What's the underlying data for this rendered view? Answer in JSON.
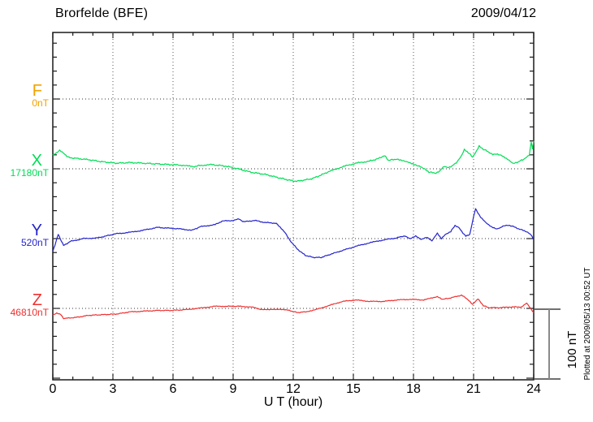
{
  "chart_data": {
    "type": "line",
    "title": "Brorfelde (BFE)",
    "date": "2009/04/12",
    "xlabel": "U T (hour)",
    "x_range": [
      0,
      24
    ],
    "x_major_ticks": [
      0,
      3,
      6,
      9,
      12,
      15,
      18,
      21,
      24
    ],
    "x_minor_step_hours": 1,
    "y_minor_tick_nT": 20,
    "series_offset_nT": 100,
    "grid": "dotted vertical lines every 3 hours; dotted horizontal baseline per component",
    "legend_position": "left margin, one label per component baseline",
    "scale_bar": {
      "label": "100 nT",
      "span_nT": 100
    },
    "plotted_at": "Plotted at 2009/05/13 00:52 UT",
    "series": [
      {
        "name": "F",
        "baseline_label": "0nT",
        "color": "#f2a200",
        "jitter_nT": 0,
        "points": []
      },
      {
        "name": "X",
        "baseline_label": "17180nT",
        "color": "#00dd55",
        "jitter_nT": 1.1,
        "points": [
          [
            0,
            19
          ],
          [
            0.17,
            23
          ],
          [
            0.34,
            26
          ],
          [
            0.54,
            22
          ],
          [
            0.81,
            16
          ],
          [
            1.15,
            15
          ],
          [
            1.8,
            13
          ],
          [
            2.5,
            10
          ],
          [
            3.2,
            8
          ],
          [
            3.9,
            9
          ],
          [
            4.5,
            8
          ],
          [
            5.2,
            7
          ],
          [
            5.9,
            6
          ],
          [
            6.5,
            5
          ],
          [
            7.0,
            3
          ],
          [
            7.4,
            5
          ],
          [
            7.9,
            6
          ],
          [
            8.6,
            4
          ],
          [
            9.25,
            0
          ],
          [
            9.9,
            -5
          ],
          [
            10.6,
            -8
          ],
          [
            11.3,
            -13
          ],
          [
            11.76,
            -16
          ],
          [
            12.16,
            -18
          ],
          [
            12.57,
            -16
          ],
          [
            12.97,
            -14
          ],
          [
            13.38,
            -9
          ],
          [
            13.78,
            -4
          ],
          [
            14.46,
            3
          ],
          [
            15.13,
            8
          ],
          [
            15.8,
            11
          ],
          [
            16.2,
            14
          ],
          [
            16.55,
            19
          ],
          [
            16.76,
            12
          ],
          [
            17.16,
            14
          ],
          [
            17.43,
            12
          ],
          [
            17.7,
            10
          ],
          [
            17.97,
            7
          ],
          [
            18.24,
            4
          ],
          [
            18.51,
            1
          ],
          [
            18.78,
            -5
          ],
          [
            19.12,
            -6
          ],
          [
            19.32,
            -3
          ],
          [
            19.53,
            4
          ],
          [
            19.73,
            2
          ],
          [
            19.93,
            4
          ],
          [
            20.14,
            9
          ],
          [
            20.4,
            19
          ],
          [
            20.54,
            28
          ],
          [
            20.74,
            23
          ],
          [
            20.95,
            17
          ],
          [
            21.15,
            26
          ],
          [
            21.28,
            33
          ],
          [
            21.49,
            28
          ],
          [
            21.76,
            24
          ],
          [
            21.96,
            21
          ],
          [
            22.37,
            20
          ],
          [
            22.7,
            14
          ],
          [
            22.97,
            8
          ],
          [
            23.24,
            10
          ],
          [
            23.51,
            14
          ],
          [
            23.78,
            20
          ],
          [
            23.88,
            38
          ],
          [
            23.94,
            29
          ],
          [
            24,
            40
          ]
        ]
      },
      {
        "name": "Y",
        "baseline_label": "520nT",
        "color": "#2424cc",
        "jitter_nT": 0.8,
        "points": [
          [
            0,
            -19
          ],
          [
            0.27,
            6
          ],
          [
            0.54,
            -10
          ],
          [
            0.88,
            -4
          ],
          [
            1.55,
            0
          ],
          [
            2.23,
            1
          ],
          [
            3.17,
            7
          ],
          [
            3.85,
            9
          ],
          [
            4.53,
            12
          ],
          [
            5.2,
            16
          ],
          [
            5.74,
            15
          ],
          [
            6.28,
            14
          ],
          [
            6.96,
            12
          ],
          [
            7.36,
            17
          ],
          [
            8.1,
            20
          ],
          [
            8.45,
            25
          ],
          [
            9.0,
            26
          ],
          [
            9.3,
            28
          ],
          [
            9.53,
            24
          ],
          [
            10.07,
            26
          ],
          [
            10.61,
            23
          ],
          [
            11.15,
            22
          ],
          [
            11.6,
            8
          ],
          [
            11.9,
            -5
          ],
          [
            12.2,
            -15
          ],
          [
            12.6,
            -24
          ],
          [
            13.0,
            -27
          ],
          [
            13.4,
            -27
          ],
          [
            13.8,
            -23
          ],
          [
            14.46,
            -17
          ],
          [
            15.13,
            -11
          ],
          [
            15.81,
            -6
          ],
          [
            16.49,
            -2
          ],
          [
            17.16,
            1
          ],
          [
            17.57,
            4
          ],
          [
            17.84,
            0
          ],
          [
            18.11,
            4
          ],
          [
            18.38,
            -1
          ],
          [
            18.65,
            2
          ],
          [
            18.92,
            -3
          ],
          [
            19.19,
            8
          ],
          [
            19.39,
            0
          ],
          [
            19.59,
            6
          ],
          [
            19.86,
            10
          ],
          [
            20.07,
            19
          ],
          [
            20.27,
            16
          ],
          [
            20.47,
            8
          ],
          [
            20.61,
            4
          ],
          [
            20.81,
            6
          ],
          [
            20.95,
            25
          ],
          [
            21.1,
            43
          ],
          [
            21.22,
            37
          ],
          [
            21.35,
            31
          ],
          [
            21.62,
            23
          ],
          [
            21.89,
            17
          ],
          [
            22.16,
            14
          ],
          [
            22.36,
            16
          ],
          [
            22.57,
            19
          ],
          [
            22.97,
            18
          ],
          [
            23.24,
            14
          ],
          [
            23.65,
            10
          ],
          [
            23.92,
            4
          ],
          [
            24,
            -2
          ]
        ]
      },
      {
        "name": "Z",
        "baseline_label": "46810nT",
        "color": "#ee3030",
        "jitter_nT": 0.7,
        "points": [
          [
            0,
            -10
          ],
          [
            0.2,
            -7
          ],
          [
            0.4,
            -9
          ],
          [
            0.54,
            -15
          ],
          [
            0.74,
            -14
          ],
          [
            1.15,
            -13
          ],
          [
            1.8,
            -10
          ],
          [
            2.5,
            -9
          ],
          [
            3.2,
            -8
          ],
          [
            3.85,
            -5
          ],
          [
            4.53,
            -4
          ],
          [
            5.2,
            -3
          ],
          [
            5.9,
            -3
          ],
          [
            6.55,
            -2
          ],
          [
            7.23,
            0
          ],
          [
            8.1,
            3
          ],
          [
            8.6,
            3
          ],
          [
            9.25,
            3
          ],
          [
            9.93,
            2
          ],
          [
            10.3,
            -1
          ],
          [
            10.8,
            -2
          ],
          [
            11.3,
            -1
          ],
          [
            11.8,
            -3
          ],
          [
            12.2,
            -6
          ],
          [
            12.6,
            -5
          ],
          [
            13.1,
            -2
          ],
          [
            13.78,
            4
          ],
          [
            14.46,
            10
          ],
          [
            15.13,
            12
          ],
          [
            15.81,
            10
          ],
          [
            16.49,
            10
          ],
          [
            17.16,
            12
          ],
          [
            17.84,
            13
          ],
          [
            18.51,
            12
          ],
          [
            19.19,
            17
          ],
          [
            19.46,
            13
          ],
          [
            19.86,
            15
          ],
          [
            20.4,
            19
          ],
          [
            20.75,
            12
          ],
          [
            20.95,
            6
          ],
          [
            21.22,
            14
          ],
          [
            21.49,
            4
          ],
          [
            21.76,
            1
          ],
          [
            22.3,
            1
          ],
          [
            22.84,
            2
          ],
          [
            23.38,
            2
          ],
          [
            23.65,
            8
          ],
          [
            23.85,
            0
          ],
          [
            24,
            -6
          ]
        ]
      }
    ]
  }
}
